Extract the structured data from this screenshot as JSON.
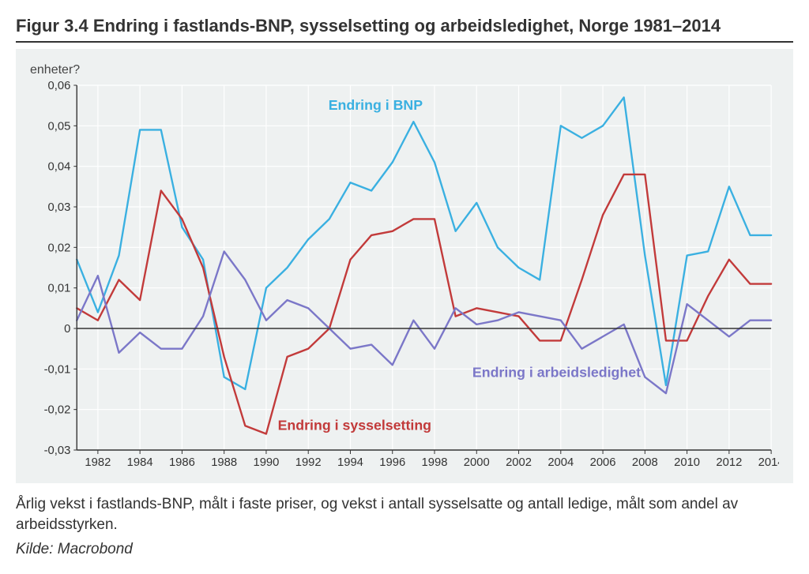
{
  "figure": {
    "number": "Figur 3.4",
    "title": "Endring i fastlands-BNP, sysselsetting og arbeidsledighet, Norge 1981–2014",
    "y_axis_label": "enheter?",
    "caption": "Årlig vekst i fastlands-BNP, målt i faste priser, og vekst i antall sysselsatte og antall ledige, målt som andel av arbeidsstyrken.",
    "source": "Kilde: Macrobond"
  },
  "chart": {
    "type": "line",
    "background_color": "#eef1f1",
    "plot_bg": "#eef1f1",
    "grid_color": "#ffffff",
    "grid_width": 1.2,
    "axis_color": "#333333",
    "tick_font_size": 15,
    "tick_color": "#333333",
    "x": {
      "min": 1981,
      "max": 2014,
      "tick_step": 2,
      "tick_start": 1982,
      "tick_end": 2014
    },
    "y": {
      "min": -0.03,
      "max": 0.06,
      "tick_step": 0.01,
      "fmt": "0,00"
    },
    "line_width": 2.4,
    "series": [
      {
        "id": "bnp",
        "label": "Endring i BNP",
        "label_xy": [
          1995.2,
          0.054
        ],
        "color": "#3ab0e1",
        "data": [
          [
            1981,
            0.017
          ],
          [
            1982,
            0.004
          ],
          [
            1983,
            0.018
          ],
          [
            1984,
            0.049
          ],
          [
            1985,
            0.049
          ],
          [
            1986,
            0.025
          ],
          [
            1987,
            0.017
          ],
          [
            1988,
            -0.012
          ],
          [
            1989,
            -0.015
          ],
          [
            1990,
            0.01
          ],
          [
            1991,
            0.015
          ],
          [
            1992,
            0.022
          ],
          [
            1993,
            0.027
          ],
          [
            1994,
            0.036
          ],
          [
            1995,
            0.034
          ],
          [
            1996,
            0.041
          ],
          [
            1997,
            0.051
          ],
          [
            1998,
            0.041
          ],
          [
            1999,
            0.024
          ],
          [
            2000,
            0.031
          ],
          [
            2001,
            0.02
          ],
          [
            2002,
            0.015
          ],
          [
            2003,
            0.012
          ],
          [
            2004,
            0.05
          ],
          [
            2005,
            0.047
          ],
          [
            2006,
            0.05
          ],
          [
            2007,
            0.057
          ],
          [
            2008,
            0.018
          ],
          [
            2009,
            -0.014
          ],
          [
            2010,
            0.018
          ],
          [
            2011,
            0.019
          ],
          [
            2012,
            0.035
          ],
          [
            2013,
            0.023
          ],
          [
            2014,
            0.023
          ]
        ]
      },
      {
        "id": "sysselsetting",
        "label": "Endring i sysselsetting",
        "label_xy": [
          1994.2,
          -0.025
        ],
        "color": "#c23a3a",
        "data": [
          [
            1981,
            0.005
          ],
          [
            1982,
            0.002
          ],
          [
            1983,
            0.012
          ],
          [
            1984,
            0.007
          ],
          [
            1985,
            0.034
          ],
          [
            1986,
            0.027
          ],
          [
            1987,
            0.015
          ],
          [
            1988,
            -0.007
          ],
          [
            1989,
            -0.024
          ],
          [
            1990,
            -0.026
          ],
          [
            1991,
            -0.007
          ],
          [
            1992,
            -0.005
          ],
          [
            1993,
            0.0
          ],
          [
            1994,
            0.017
          ],
          [
            1995,
            0.023
          ],
          [
            1996,
            0.024
          ],
          [
            1997,
            0.027
          ],
          [
            1998,
            0.027
          ],
          [
            1999,
            0.003
          ],
          [
            2000,
            0.005
          ],
          [
            2001,
            0.004
          ],
          [
            2002,
            0.003
          ],
          [
            2003,
            -0.003
          ],
          [
            2004,
            -0.003
          ],
          [
            2005,
            0.012
          ],
          [
            2006,
            0.028
          ],
          [
            2007,
            0.038
          ],
          [
            2008,
            0.038
          ],
          [
            2009,
            -0.003
          ],
          [
            2010,
            -0.003
          ],
          [
            2011,
            0.008
          ],
          [
            2012,
            0.017
          ],
          [
            2013,
            0.011
          ],
          [
            2014,
            0.011
          ]
        ]
      },
      {
        "id": "arbeidsledighet",
        "label": "Endring i arbeidsledighet",
        "label_xy": [
          2003.8,
          -0.012
        ],
        "color": "#7b77c8",
        "data": [
          [
            1981,
            0.002
          ],
          [
            1982,
            0.013
          ],
          [
            1983,
            -0.006
          ],
          [
            1984,
            -0.001
          ],
          [
            1985,
            -0.005
          ],
          [
            1986,
            -0.005
          ],
          [
            1987,
            0.003
          ],
          [
            1988,
            0.019
          ],
          [
            1989,
            0.012
          ],
          [
            1990,
            0.002
          ],
          [
            1991,
            0.007
          ],
          [
            1992,
            0.005
          ],
          [
            1993,
            0.0
          ],
          [
            1994,
            -0.005
          ],
          [
            1995,
            -0.004
          ],
          [
            1996,
            -0.009
          ],
          [
            1997,
            0.002
          ],
          [
            1998,
            -0.005
          ],
          [
            1999,
            0.005
          ],
          [
            2000,
            0.001
          ],
          [
            2001,
            0.002
          ],
          [
            2002,
            0.004
          ],
          [
            2003,
            0.003
          ],
          [
            2004,
            0.002
          ],
          [
            2005,
            -0.005
          ],
          [
            2006,
            -0.002
          ],
          [
            2007,
            0.001
          ],
          [
            2008,
            -0.012
          ],
          [
            2009,
            -0.016
          ],
          [
            2010,
            0.006
          ],
          [
            2011,
            0.002
          ],
          [
            2012,
            -0.002
          ],
          [
            2013,
            0.002
          ],
          [
            2014,
            0.002
          ]
        ]
      }
    ]
  }
}
